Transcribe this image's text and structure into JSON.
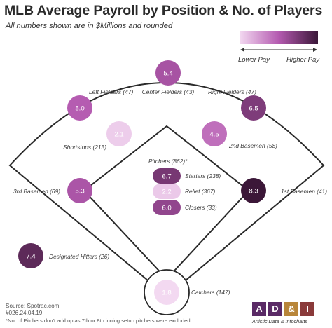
{
  "header": {
    "title": "MLB Average Payroll by Position & No. of Players",
    "subtitle": "All numbers  shown are in $Millions and rounded"
  },
  "legend": {
    "low_label": "Lower Pay",
    "high_label": "Higher Pay",
    "low_color": "#f3d9f1",
    "high_color": "#3b1738"
  },
  "chart_data": {
    "type": "bubble-diagram",
    "unit": "$Millions",
    "color_scale": {
      "min": 1.8,
      "max": 8.3
    },
    "positions": [
      {
        "key": "cf",
        "name": "Center Fielders (43)",
        "value": 5.4
      },
      {
        "key": "lf",
        "name": "Left Fielders (47)",
        "value": 5.0
      },
      {
        "key": "rf",
        "name": "Right Fielders (47)",
        "value": 6.5
      },
      {
        "key": "ss",
        "name": "Shortstops (213)",
        "value": 2.1
      },
      {
        "key": "2b",
        "name": "2nd Basemen (58)",
        "value": 4.5
      },
      {
        "key": "3b",
        "name": "3rd Basemen (69)",
        "value": 5.3
      },
      {
        "key": "1b",
        "name": "1st Basemen (41)",
        "value": 8.3
      },
      {
        "key": "dh",
        "name": "Designated Hitters (26)",
        "value": 7.4
      },
      {
        "key": "c",
        "name": "Catchers (147)",
        "value": 1.8
      },
      {
        "key": "sp",
        "name": "Starters (238)",
        "value": 6.7
      },
      {
        "key": "rp",
        "name": "Relief (367)",
        "value": 2.2
      },
      {
        "key": "cl",
        "name": "Closers (33)",
        "value": 6.0
      }
    ],
    "pitchers_label": "Pitchers (862)*"
  },
  "footer": {
    "source": "Source: Spotrac.com",
    "id": "#026.24.04.19",
    "note": "*No. of Pitchers don't add up as 7th or 8th inning setup pitchers were excluded"
  },
  "logo": {
    "letters": [
      "A",
      "D",
      "&",
      "I"
    ],
    "colors": [
      "#5a2a66",
      "#5a2a66",
      "#b8863a",
      "#8a3a3a"
    ],
    "tagline": "Artistic Data & Infocharts"
  }
}
